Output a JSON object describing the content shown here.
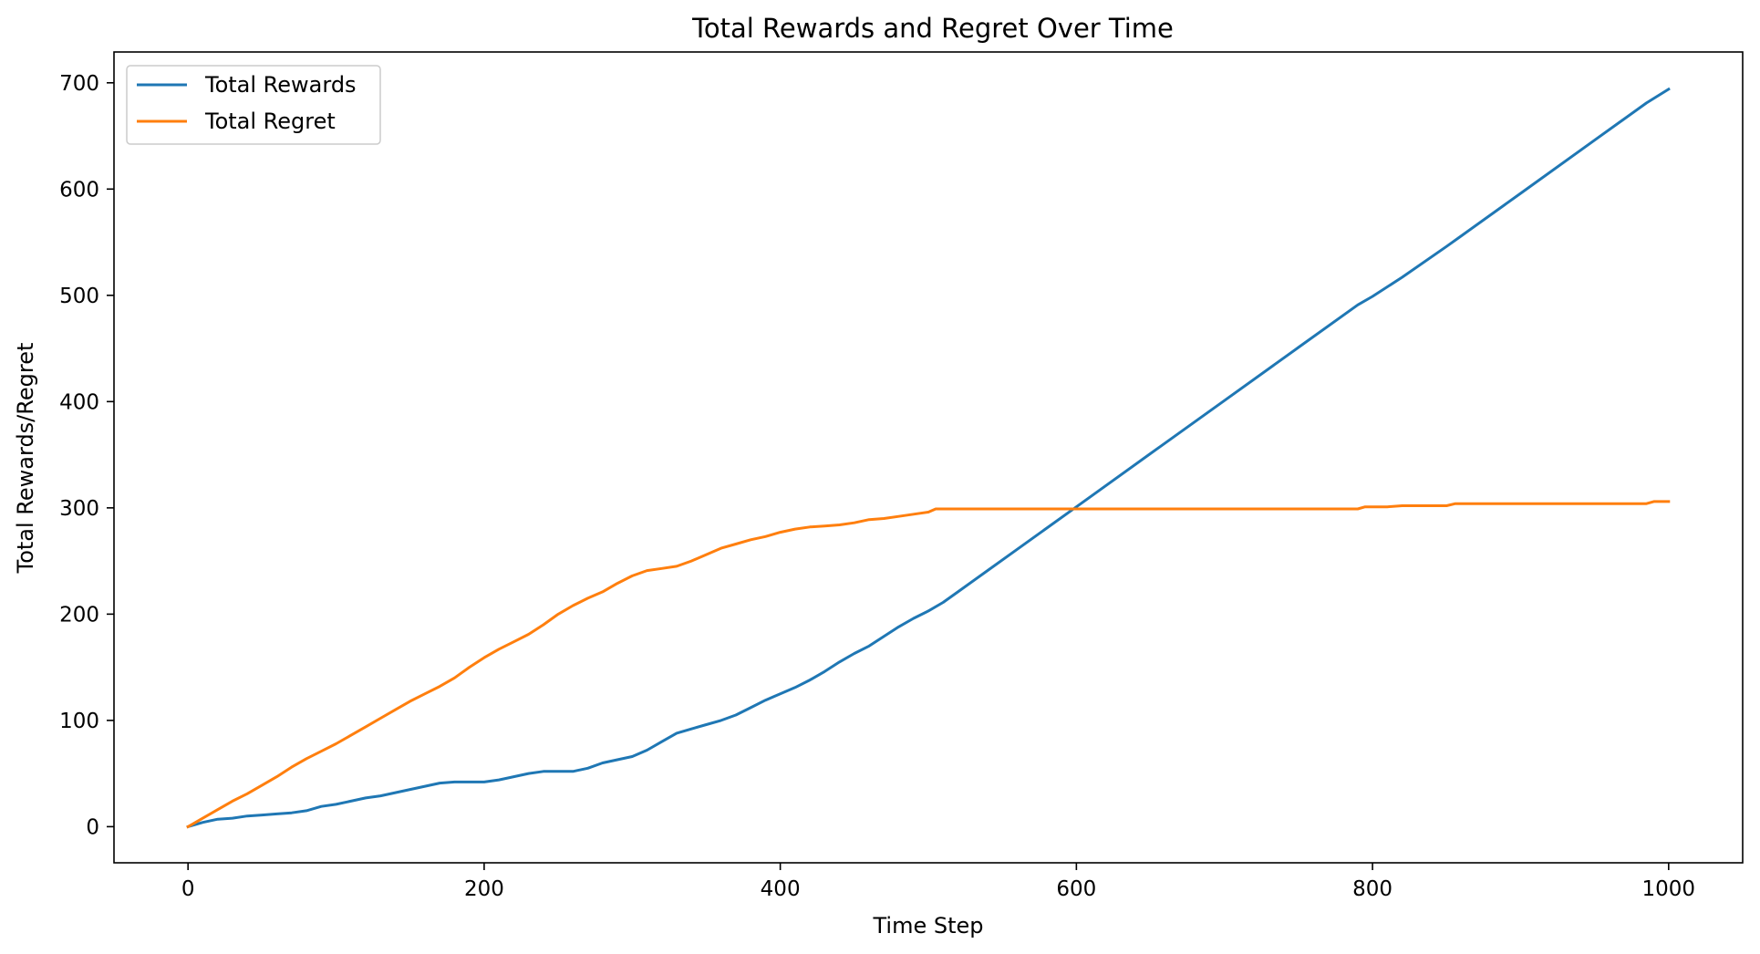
{
  "chart_data": {
    "type": "line",
    "title": "Total Rewards and Regret Over Time",
    "xlabel": "Time Step",
    "ylabel": "Total Rewards/Regret",
    "xlim": [
      -50,
      1050
    ],
    "ylim": [
      -34,
      729
    ],
    "xticks": [
      0,
      200,
      400,
      600,
      800,
      1000
    ],
    "yticks": [
      0,
      100,
      200,
      300,
      400,
      500,
      600,
      700
    ],
    "grid": false,
    "legend_position": "upper left",
    "series": [
      {
        "name": "Total Rewards",
        "color": "#1f77b4",
        "x": [
          0,
          10,
          20,
          30,
          40,
          50,
          60,
          70,
          80,
          90,
          100,
          110,
          120,
          130,
          140,
          150,
          160,
          170,
          180,
          190,
          200,
          210,
          220,
          230,
          240,
          250,
          260,
          270,
          280,
          290,
          300,
          310,
          320,
          330,
          340,
          350,
          360,
          370,
          380,
          390,
          400,
          410,
          420,
          430,
          440,
          450,
          460,
          470,
          480,
          490,
          500,
          510,
          520,
          540,
          560,
          580,
          600,
          650,
          700,
          750,
          790,
          800,
          820,
          850,
          860,
          900,
          950,
          985,
          1000
        ],
        "y": [
          0,
          4,
          7,
          8,
          10,
          11,
          12,
          13,
          15,
          19,
          21,
          24,
          27,
          29,
          32,
          35,
          38,
          41,
          42,
          42,
          42,
          44,
          47,
          50,
          52,
          52,
          52,
          55,
          60,
          63,
          66,
          72,
          80,
          88,
          92,
          96,
          100,
          105,
          112,
          119,
          125,
          131,
          138,
          146,
          155,
          163,
          170,
          179,
          188,
          196,
          203,
          211,
          221,
          241,
          261,
          281,
          301,
          351,
          401,
          451,
          491,
          499,
          517,
          546,
          556,
          596,
          646,
          681,
          694
        ]
      },
      {
        "name": "Total Regret",
        "color": "#ff7f0e",
        "x": [
          0,
          10,
          20,
          30,
          40,
          50,
          60,
          70,
          80,
          90,
          100,
          110,
          120,
          130,
          140,
          150,
          160,
          170,
          180,
          190,
          200,
          210,
          220,
          230,
          240,
          250,
          260,
          270,
          280,
          290,
          300,
          310,
          320,
          330,
          340,
          350,
          360,
          370,
          380,
          390,
          400,
          410,
          420,
          430,
          440,
          450,
          460,
          470,
          480,
          490,
          500,
          505,
          600,
          700,
          790,
          795,
          810,
          820,
          850,
          856,
          900,
          985,
          990,
          1000
        ],
        "y": [
          0,
          8,
          16,
          24,
          31,
          39,
          47,
          56,
          64,
          71,
          78,
          86,
          94,
          102,
          110,
          118,
          125,
          132,
          140,
          150,
          159,
          167,
          174,
          181,
          190,
          200,
          208,
          215,
          221,
          229,
          236,
          241,
          243,
          245,
          250,
          256,
          262,
          266,
          270,
          273,
          277,
          280,
          282,
          283,
          284,
          286,
          289,
          290,
          292,
          294,
          296,
          299,
          299,
          299,
          299,
          301,
          301,
          302,
          302,
          304,
          304,
          304,
          306,
          306
        ]
      }
    ]
  }
}
